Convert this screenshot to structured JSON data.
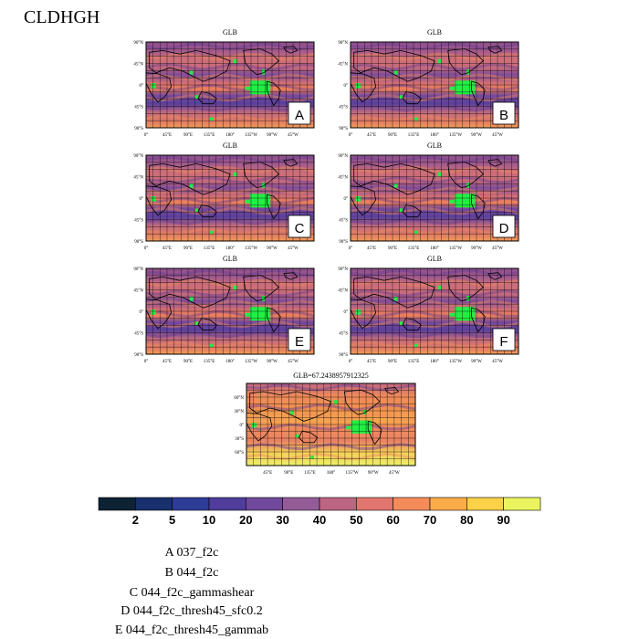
{
  "figure": {
    "title": "CLDHGH"
  },
  "chart_data": {
    "type": "heatmap",
    "variable": "CLDHGH",
    "panels": [
      {
        "label": "A",
        "title": "GLB",
        "case": "037_f2c"
      },
      {
        "label": "B",
        "title": "GLB",
        "case": "044_f2c"
      },
      {
        "label": "C",
        "title": "GLB",
        "case": "044_f2c_gammashear"
      },
      {
        "label": "D",
        "title": "GLB",
        "case": "044_f2c_thresh45_sfc0.2"
      },
      {
        "label": "E",
        "title": "GLB",
        "case": "044_f2c_thresh45_gammab"
      },
      {
        "label": "F",
        "title": "GLB",
        "case": ""
      }
    ],
    "reference_panel": {
      "title": "GLB=67.2438957912325",
      "global_mean": 67.2438957912325
    },
    "panel_lat_ticks": [
      "90°N",
      "45°N",
      "0°",
      "45°S",
      "90°S"
    ],
    "panel_lon_ticks": [
      "0°",
      "45°E",
      "90°E",
      "135°E",
      "180°",
      "135°W",
      "90°W",
      "45°W"
    ],
    "ref_lat_ticks": [
      "60°N",
      "30°N",
      "0°",
      "30°S",
      "60°S"
    ],
    "ref_lon_ticks": [
      "45°E",
      "90°E",
      "135°E",
      "180°",
      "135°W",
      "90°W",
      "45°W"
    ],
    "colorbar": {
      "levels": [
        2,
        5,
        10,
        20,
        30,
        40,
        50,
        60,
        70,
        80,
        90
      ],
      "colors": [
        "#0d2233",
        "#18306e",
        "#2e3c98",
        "#4f3c9b",
        "#71499b",
        "#935c97",
        "#bb6582",
        "#e0766f",
        "#f48c5a",
        "#fbab48",
        "#fad148",
        "#eaf45f"
      ]
    },
    "legend": [
      "A  037_f2c",
      "B  044_f2c",
      "C  044_f2c_gammashear",
      "D  044_f2c_thresh45_sfc0.2",
      "E  044_f2c_thresh45_gammab"
    ],
    "missing_color": "#22ee44"
  }
}
